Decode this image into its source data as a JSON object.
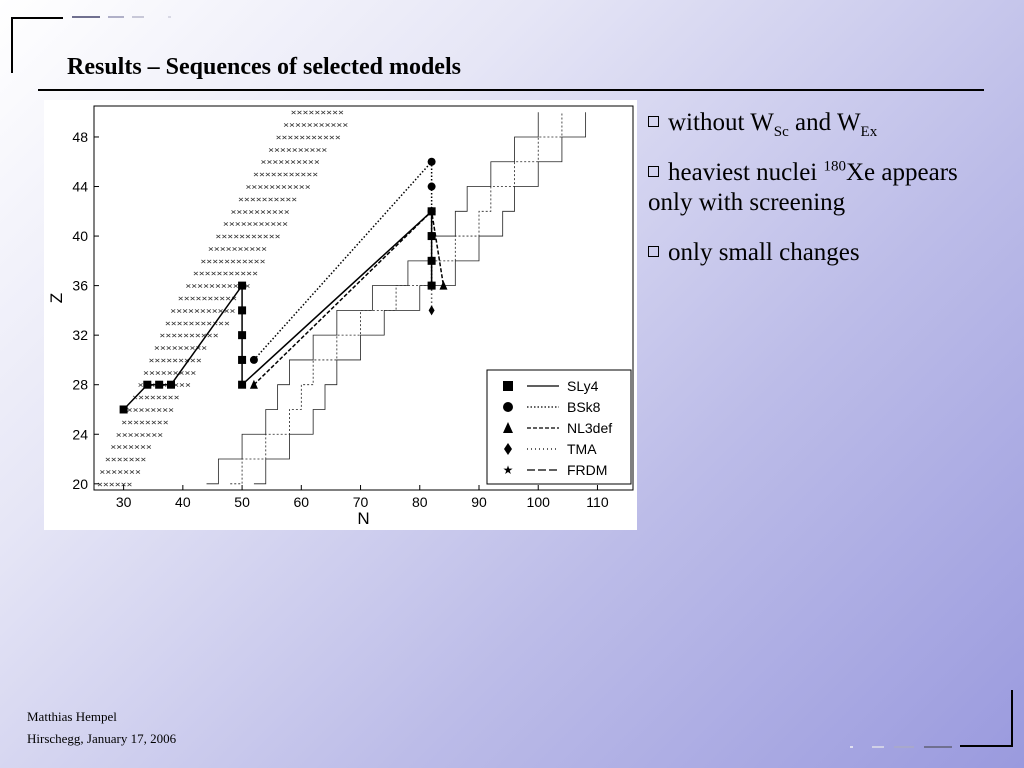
{
  "slide": {
    "title": "Results – Sequences of selected models",
    "author": "Matthias Hempel",
    "place_date": "Hirschegg, January 17, 2006"
  },
  "bullets": [
    {
      "prefix": "without W",
      "sub1": "Sc",
      "mid": " and W",
      "sub2": "Ex"
    },
    {
      "prefix": "heaviest nuclei ",
      "sup": "180",
      "rest": "Xe appears only with screening"
    },
    {
      "text": "only small changes"
    }
  ],
  "chart_data": {
    "type": "scatter",
    "xlabel": "N",
    "ylabel": "Z",
    "xlim": [
      25,
      116
    ],
    "ylim": [
      19.5,
      50.5
    ],
    "xticks": [
      30,
      40,
      50,
      60,
      70,
      80,
      90,
      100,
      110
    ],
    "yticks": [
      20,
      24,
      28,
      32,
      36,
      40,
      44,
      48
    ],
    "legend_position": "bottom-right",
    "series": [
      {
        "name": "SLy4",
        "marker": "square",
        "line": "solid",
        "points": [
          [
            30,
            26
          ],
          [
            34,
            28
          ],
          [
            36,
            28
          ],
          [
            38,
            28
          ],
          [
            50,
            36
          ],
          [
            50,
            34
          ],
          [
            50,
            32
          ],
          [
            50,
            30
          ],
          [
            50,
            28
          ],
          [
            82,
            42
          ],
          [
            82,
            40
          ],
          [
            82,
            38
          ],
          [
            82,
            36
          ]
        ]
      },
      {
        "name": "BSk8",
        "marker": "circle",
        "line": "dotted",
        "points": [
          [
            52,
            30
          ],
          [
            82,
            46
          ],
          [
            82,
            44
          ],
          [
            82,
            42
          ],
          [
            82,
            36
          ]
        ]
      },
      {
        "name": "NL3def",
        "marker": "triangle",
        "line": "dashed",
        "points": [
          [
            52,
            28
          ],
          [
            82,
            42
          ],
          [
            84,
            36
          ]
        ]
      },
      {
        "name": "TMA",
        "marker": "diamond",
        "line": "loose-dotted",
        "points": [
          [
            82,
            34
          ]
        ]
      },
      {
        "name": "FRDM",
        "marker": "star",
        "line": "long-dashed",
        "points": []
      }
    ],
    "background_marker": "×"
  },
  "colors": {
    "text": "#000000",
    "bg_start": "#ffffff",
    "bg_end": "#9a9ade",
    "accent_dash_light": "#cfcfe0",
    "accent_dash_dark": "#707090"
  }
}
